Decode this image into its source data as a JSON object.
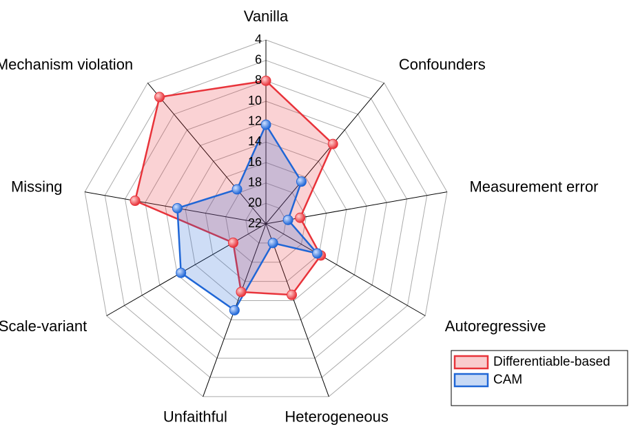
{
  "chart_data": {
    "type": "radar",
    "categories": [
      "Vanilla",
      "Confounders",
      "Measurement error",
      "Autoregressive",
      "Heterogeneous",
      "Unfaithful",
      "Scale-variant",
      "Missing",
      "Mechanism violation"
    ],
    "series": [
      {
        "name": "Differentiable-based",
        "color": "#e8333a",
        "values": [
          8.0,
          11.8,
          18.6,
          15.8,
          14.6,
          14.9,
          18.3,
          9.0,
          5.8
        ]
      },
      {
        "name": "CAM",
        "color": "#1f66d6",
        "values": [
          12.3,
          16.6,
          19.8,
          16.2,
          20.0,
          13.0,
          12.4,
          13.2,
          17.6
        ]
      }
    ],
    "rlim": [
      22,
      4
    ],
    "rticks": [
      4,
      6,
      8,
      10,
      12,
      14,
      16,
      18,
      20,
      22
    ],
    "legend": "lower right"
  }
}
